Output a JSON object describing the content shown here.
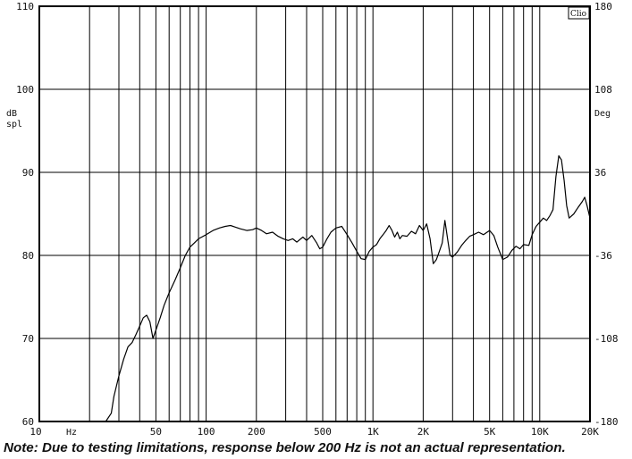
{
  "chart_data": {
    "type": "line",
    "xscale": "log",
    "xlim": [
      10,
      20000
    ],
    "ylim": [
      60,
      110
    ],
    "y2lim": [
      -180,
      180
    ],
    "grid": true,
    "xlabel": "Hz",
    "ylabel": [
      "dB",
      "spl"
    ],
    "y2label": "Deg",
    "badge": "Clio",
    "x_tick_labels": [
      {
        "v": 10,
        "label": "10"
      },
      {
        "v": 50,
        "label": "50"
      },
      {
        "v": 100,
        "label": "100"
      },
      {
        "v": 200,
        "label": "200"
      },
      {
        "v": 500,
        "label": "500"
      },
      {
        "v": 1000,
        "label": "1K"
      },
      {
        "v": 2000,
        "label": "2K"
      },
      {
        "v": 5000,
        "label": "5K"
      },
      {
        "v": 10000,
        "label": "10K"
      },
      {
        "v": 20000,
        "label": "20K"
      }
    ],
    "y_ticks": [
      60,
      70,
      80,
      90,
      100,
      110
    ],
    "y2_ticks": [
      -180,
      -108,
      -36,
      36,
      108,
      180
    ],
    "series": [
      {
        "values": [
          [
            25,
            60.0
          ],
          [
            27,
            61.0
          ],
          [
            28,
            63.0
          ],
          [
            30,
            65.5
          ],
          [
            32,
            67.5
          ],
          [
            34,
            69.0
          ],
          [
            36,
            69.5
          ],
          [
            38,
            70.5
          ],
          [
            40,
            71.5
          ],
          [
            42,
            72.5
          ],
          [
            44,
            72.8
          ],
          [
            46,
            72.0
          ],
          [
            48,
            70.0
          ],
          [
            50,
            71.0
          ],
          [
            53,
            72.5
          ],
          [
            56,
            74.0
          ],
          [
            60,
            75.5
          ],
          [
            65,
            77.0
          ],
          [
            70,
            78.5
          ],
          [
            75,
            80.0
          ],
          [
            80,
            81.0
          ],
          [
            85,
            81.5
          ],
          [
            90,
            82.0
          ],
          [
            100,
            82.5
          ],
          [
            110,
            83.0
          ],
          [
            120,
            83.3
          ],
          [
            130,
            83.5
          ],
          [
            140,
            83.6
          ],
          [
            150,
            83.4
          ],
          [
            160,
            83.2
          ],
          [
            175,
            83.0
          ],
          [
            190,
            83.1
          ],
          [
            200,
            83.3
          ],
          [
            215,
            83.0
          ],
          [
            230,
            82.6
          ],
          [
            250,
            82.8
          ],
          [
            270,
            82.3
          ],
          [
            290,
            82.0
          ],
          [
            310,
            81.8
          ],
          [
            330,
            82.0
          ],
          [
            350,
            81.6
          ],
          [
            380,
            82.2
          ],
          [
            400,
            81.8
          ],
          [
            430,
            82.4
          ],
          [
            460,
            81.5
          ],
          [
            480,
            80.8
          ],
          [
            500,
            81.0
          ],
          [
            530,
            82.0
          ],
          [
            560,
            82.8
          ],
          [
            600,
            83.3
          ],
          [
            650,
            83.5
          ],
          [
            700,
            82.5
          ],
          [
            750,
            81.5
          ],
          [
            800,
            80.5
          ],
          [
            850,
            79.6
          ],
          [
            900,
            79.5
          ],
          [
            950,
            80.5
          ],
          [
            1000,
            81.0
          ],
          [
            1050,
            81.3
          ],
          [
            1100,
            82.0
          ],
          [
            1150,
            82.5
          ],
          [
            1200,
            83.0
          ],
          [
            1250,
            83.6
          ],
          [
            1300,
            83.0
          ],
          [
            1350,
            82.2
          ],
          [
            1400,
            82.8
          ],
          [
            1450,
            82.0
          ],
          [
            1500,
            82.4
          ],
          [
            1600,
            82.3
          ],
          [
            1700,
            82.9
          ],
          [
            1800,
            82.6
          ],
          [
            1900,
            83.6
          ],
          [
            2000,
            83.0
          ],
          [
            2100,
            83.8
          ],
          [
            2200,
            82.0
          ],
          [
            2300,
            79.0
          ],
          [
            2400,
            79.5
          ],
          [
            2500,
            80.5
          ],
          [
            2600,
            81.5
          ],
          [
            2700,
            84.2
          ],
          [
            2800,
            82.0
          ],
          [
            2900,
            80.0
          ],
          [
            3000,
            79.8
          ],
          [
            3200,
            80.4
          ],
          [
            3400,
            81.2
          ],
          [
            3600,
            81.8
          ],
          [
            3800,
            82.3
          ],
          [
            4000,
            82.5
          ],
          [
            4300,
            82.8
          ],
          [
            4600,
            82.5
          ],
          [
            5000,
            83.0
          ],
          [
            5300,
            82.4
          ],
          [
            5600,
            81.0
          ],
          [
            6000,
            79.5
          ],
          [
            6400,
            79.8
          ],
          [
            6800,
            80.6
          ],
          [
            7200,
            81.1
          ],
          [
            7600,
            80.8
          ],
          [
            8000,
            81.3
          ],
          [
            8600,
            81.2
          ],
          [
            9000,
            82.5
          ],
          [
            9500,
            83.5
          ],
          [
            10000,
            84.0
          ],
          [
            10500,
            84.5
          ],
          [
            11000,
            84.2
          ],
          [
            11500,
            84.8
          ],
          [
            12000,
            85.5
          ],
          [
            12500,
            89.5
          ],
          [
            13000,
            92.0
          ],
          [
            13500,
            91.5
          ],
          [
            14000,
            89.0
          ],
          [
            14500,
            86.0
          ],
          [
            15000,
            84.5
          ],
          [
            16000,
            85.0
          ],
          [
            17000,
            85.8
          ],
          [
            18000,
            86.5
          ],
          [
            18600,
            87.0
          ],
          [
            19200,
            86.0
          ],
          [
            20000,
            84.5
          ]
        ]
      }
    ]
  },
  "note": "Note:  Due to testing limitations, response below 200 Hz is not an actual representation."
}
